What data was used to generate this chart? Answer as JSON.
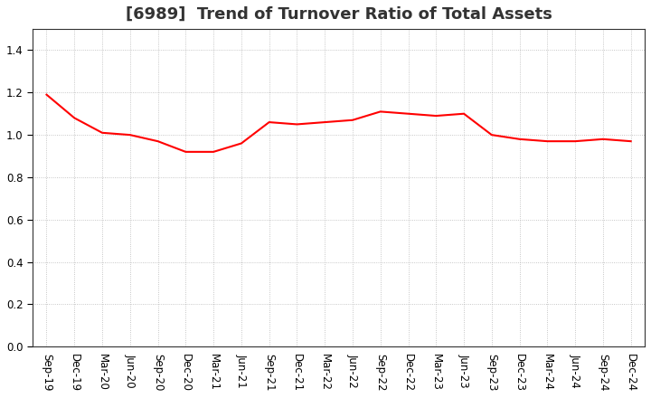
{
  "title": "[6989]  Trend of Turnover Ratio of Total Assets",
  "line_color": "#FF0000",
  "line_width": 1.5,
  "background_color": "#FFFFFF",
  "grid_color": "#999999",
  "ylim": [
    0.0,
    1.5
  ],
  "yticks": [
    0.0,
    0.2,
    0.4,
    0.6,
    0.8,
    1.0,
    1.2,
    1.4
  ],
  "x_labels": [
    "Sep-19",
    "Dec-19",
    "Mar-20",
    "Jun-20",
    "Sep-20",
    "Dec-20",
    "Mar-21",
    "Jun-21",
    "Sep-21",
    "Dec-21",
    "Mar-22",
    "Jun-22",
    "Sep-22",
    "Dec-22",
    "Mar-23",
    "Jun-23",
    "Sep-23",
    "Dec-23",
    "Mar-24",
    "Jun-24",
    "Sep-24",
    "Dec-24"
  ],
  "values": [
    1.19,
    1.08,
    1.01,
    1.0,
    0.97,
    0.92,
    0.92,
    0.96,
    1.06,
    1.05,
    1.06,
    1.07,
    1.11,
    1.1,
    1.09,
    1.1,
    1.0,
    0.98,
    0.97,
    0.97,
    0.98,
    0.97
  ],
  "title_fontsize": 13,
  "tick_fontsize": 8.5
}
